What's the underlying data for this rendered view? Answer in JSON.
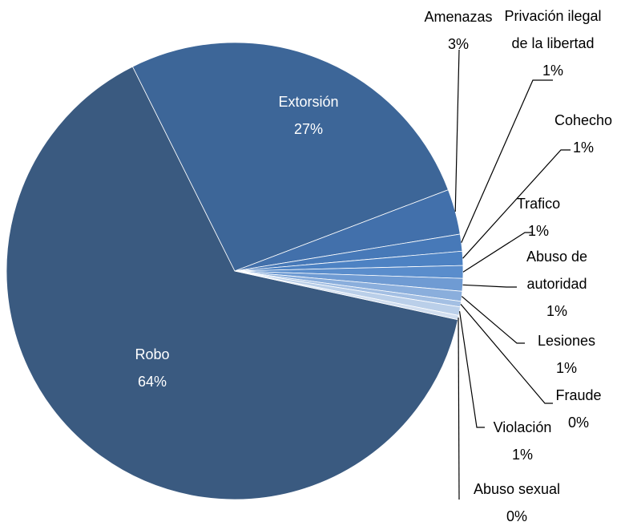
{
  "chart_data": {
    "type": "pie",
    "categories": [
      "Robo",
      "Extorsión",
      "Amenazas",
      "Privación ilegal de la libertad",
      "Cohecho",
      "Trafico",
      "Abuso de autoridad",
      "Lesiones",
      "Fraude",
      "Violación",
      "Abuso sexual"
    ],
    "values": [
      64.2,
      26.6,
      3.2,
      1.2,
      1.0,
      0.9,
      0.9,
      0.7,
      0.4,
      0.6,
      0.3
    ],
    "value_labels": [
      "64%",
      "27%",
      "3%",
      "1%",
      "1%",
      "1%",
      "1%",
      "1%",
      "0%",
      "1%",
      "0%"
    ],
    "colors": [
      "#3a5a80",
      "#3d6698",
      "#4270ab",
      "#4779b8",
      "#4d82c3",
      "#5a8dcc",
      "#6f9bd3",
      "#8aaedc",
      "#a3bfe3",
      "#bacfe9",
      "#d2dff0"
    ]
  }
}
